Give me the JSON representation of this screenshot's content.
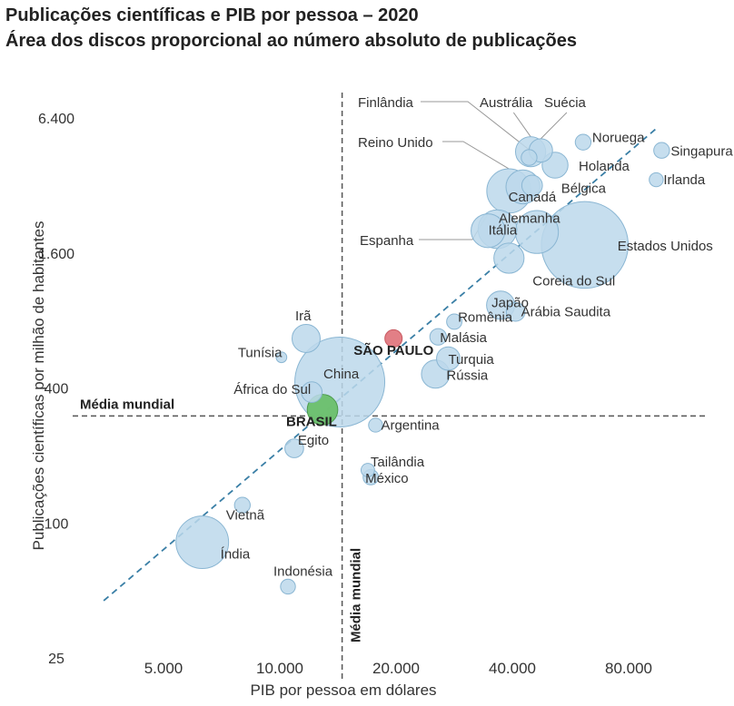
{
  "chart_data": {
    "type": "scatter",
    "title": "Publicações científicas e PIB por pessoa – 2020",
    "subtitle": "Área dos discos proporcional ao número absoluto de publicações",
    "xlabel": "PIB por pessoa em dólares",
    "ylabel": "Publicações científicas por milhão de habitantes",
    "x_scale": "log",
    "y_scale": "log",
    "xlim": [
      3000,
      120000
    ],
    "ylim": [
      25,
      6400
    ],
    "x_ticks": [
      {
        "value": 5000,
        "label": "5.000"
      },
      {
        "value": 10000,
        "label": "10.000"
      },
      {
        "value": 20000,
        "label": "20.000"
      },
      {
        "value": 40000,
        "label": "40.000"
      },
      {
        "value": 80000,
        "label": "80.000"
      }
    ],
    "y_ticks": [
      {
        "value": 25,
        "label": "25"
      },
      {
        "value": 100,
        "label": "100"
      },
      {
        "value": 400,
        "label": "400"
      },
      {
        "value": 1600,
        "label": "1.600"
      },
      {
        "value": 6400,
        "label": "6.400"
      }
    ],
    "reference_lines": [
      {
        "axis": "x",
        "value": 14500,
        "label": "Média mundial"
      },
      {
        "axis": "y",
        "value": 300,
        "label": "Média mundial"
      }
    ],
    "trend_line": {
      "from": [
        3500,
        45
      ],
      "to": [
        95000,
        5800
      ]
    },
    "grid": false,
    "legend": "none",
    "colors": {
      "bubble": "#bcd8eb",
      "bubble_stroke": "#8ab6d3",
      "sao_paulo": "#e0787f",
      "brasil": "#6abf6a",
      "trend": "#3a7fa6",
      "reference": "#555555",
      "leader": "#999999"
    },
    "points": [
      {
        "label": "Índia",
        "x": 6300,
        "y": 82,
        "size": 230000
      },
      {
        "label": "Vietnã",
        "x": 8000,
        "y": 120,
        "size": 16000
      },
      {
        "label": "Indonésia",
        "x": 10500,
        "y": 52,
        "size": 14000
      },
      {
        "label": "Egito",
        "x": 10900,
        "y": 215,
        "size": 24000
      },
      {
        "label": "Tunísia",
        "x": 10100,
        "y": 548,
        "size": 6000
      },
      {
        "label": "Irã",
        "x": 11700,
        "y": 665,
        "size": 60000
      },
      {
        "label": "África do Sul",
        "x": 12100,
        "y": 383,
        "size": 30000
      },
      {
        "label": "China",
        "x": 14300,
        "y": 425,
        "size": 700000
      },
      {
        "label": "BRASIL",
        "x": 12900,
        "y": 320,
        "size": 72000,
        "highlight": "brasil"
      },
      {
        "label": "SÃO PAULO",
        "x": 19700,
        "y": 665,
        "size": 20000,
        "highlight": "sao_paulo"
      },
      {
        "label": "Argentina",
        "x": 17700,
        "y": 273,
        "size": 12000
      },
      {
        "label": "Tailândia",
        "x": 16900,
        "y": 172,
        "size": 11000
      },
      {
        "label": "México",
        "x": 17200,
        "y": 160,
        "size": 15000
      },
      {
        "label": "Rússia",
        "x": 25300,
        "y": 461,
        "size": 60000
      },
      {
        "label": "Turquia",
        "x": 27300,
        "y": 541,
        "size": 40000
      },
      {
        "label": "Malásia",
        "x": 25700,
        "y": 676,
        "size": 18000
      },
      {
        "label": "Romênia",
        "x": 28300,
        "y": 790,
        "size": 15000
      },
      {
        "label": "Japão",
        "x": 37300,
        "y": 936,
        "size": 60000
      },
      {
        "label": "Arábia Saudita",
        "x": 40800,
        "y": 874,
        "size": 24000
      },
      {
        "label": "Coreia do Sul",
        "x": 39200,
        "y": 1517,
        "size": 70000
      },
      {
        "label": "Itália",
        "x": 36600,
        "y": 2043,
        "size": 120000
      },
      {
        "label": "Espanha",
        "x": 34600,
        "y": 2011,
        "size": 90000
      },
      {
        "label": "Alemanha",
        "x": 46300,
        "y": 1985,
        "size": 150000
      },
      {
        "label": "Estados Unidos",
        "x": 61600,
        "y": 1738,
        "size": 650000
      },
      {
        "label": "Reino Unido",
        "x": 39200,
        "y": 3024,
        "size": 160000
      },
      {
        "label": "Canadá",
        "x": 42600,
        "y": 3154,
        "size": 90000
      },
      {
        "label": "Bélgica",
        "x": 45000,
        "y": 3199,
        "size": 30000
      },
      {
        "label": "Holanda",
        "x": 51600,
        "y": 3941,
        "size": 50000
      },
      {
        "label": "Austrália",
        "x": 44600,
        "y": 4525,
        "size": 70000
      },
      {
        "label": "Suécia",
        "x": 47400,
        "y": 4585,
        "size": 40000
      },
      {
        "label": "Finlândia",
        "x": 44200,
        "y": 4263,
        "size": 16000
      },
      {
        "label": "Noruega",
        "x": 61000,
        "y": 4991,
        "size": 16000
      },
      {
        "label": "Singapura",
        "x": 97400,
        "y": 4588,
        "size": 16000
      },
      {
        "label": "Irlanda",
        "x": 94300,
        "y": 3395,
        "size": 12000
      }
    ]
  }
}
